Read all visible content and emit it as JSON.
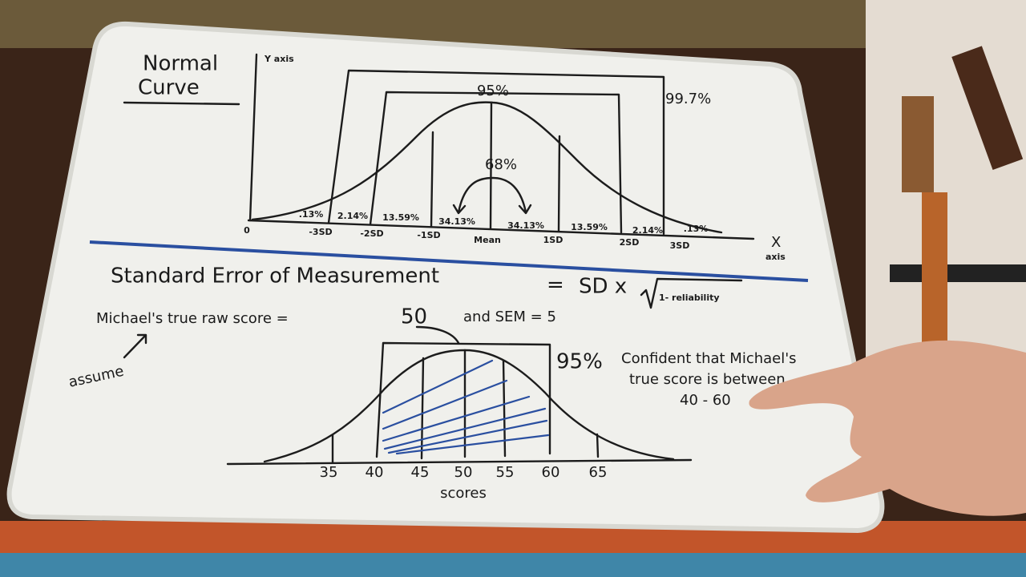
{
  "normal_curve": {
    "title_lines": [
      "Normal",
      "Curve"
    ],
    "y_axis_label": "Y axis",
    "x_axis_label_lines": [
      "X",
      "axis"
    ],
    "band_labels": [
      "95%",
      "99.7%",
      "68%"
    ],
    "region_percents": [
      ".13%",
      "2.14%",
      "13.59%",
      "34.13%",
      "34.13%",
      "13.59%",
      "2.14%",
      ".13%"
    ],
    "x_labels": [
      "0",
      "-3SD",
      "-2SD",
      "-1SD",
      "Mean",
      "1SD",
      "2SD",
      "3SD"
    ]
  },
  "sem": {
    "heading": "Standard Error of Measurement",
    "equals": "=",
    "formula_left": "SD x",
    "formula_radicand": "1- reliability",
    "statement_start": "Michael's true raw score =",
    "true_score": "50",
    "statement_end": "and SEM = 5",
    "assume": "assume",
    "confidence_percent": "95%",
    "confidence_lines": [
      "Confident that Michael's",
      "true score is between",
      "40 - 60"
    ],
    "scores_ticks": [
      "35",
      "40",
      "45",
      "50",
      "55",
      "60",
      "65"
    ],
    "scores_label": "scores"
  }
}
